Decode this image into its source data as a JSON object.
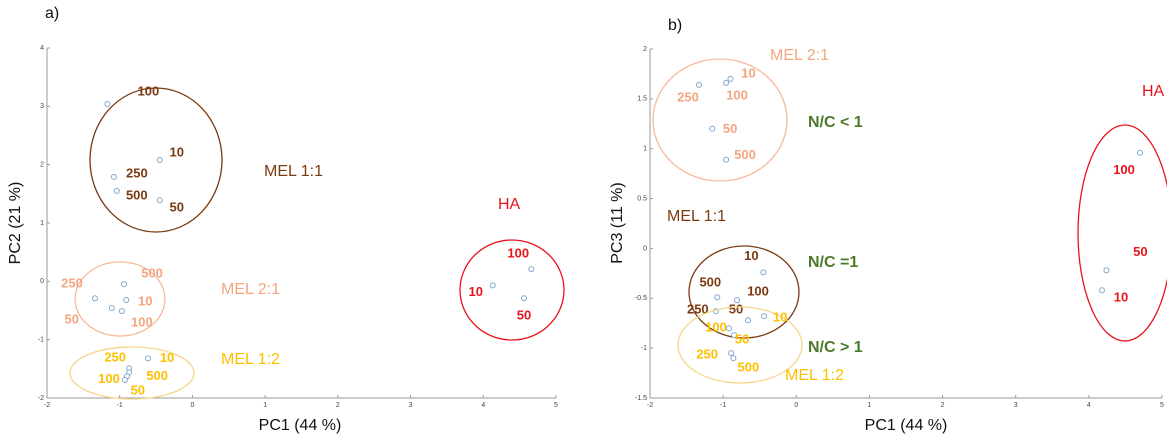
{
  "chart_data": [
    {
      "type": "scatter",
      "panel_label": "a)",
      "xlabel": "PC1 (44 %)",
      "ylabel": "PC2 (21 %)",
      "xlim": [
        -2,
        5
      ],
      "xticks": [
        -2,
        -1,
        0,
        1,
        2,
        3,
        4,
        5
      ],
      "ylim": [
        -2,
        4
      ],
      "yticks": [
        -2,
        -1,
        0,
        1,
        2,
        3,
        4
      ],
      "series": [
        {
          "name": "MEL 1:1",
          "color": "#7b3a10",
          "x": [
            -1.17,
            -0.45,
            -1.08,
            -1.04,
            -0.45
          ],
          "y": [
            3.04,
            2.08,
            1.79,
            1.55,
            1.39
          ],
          "point_labels": [
            "100",
            "10",
            "250",
            "500",
            "50"
          ]
        },
        {
          "name": "MEL 2:1",
          "color": "#f4a582",
          "x": [
            -0.94,
            -1.34,
            -0.91,
            -1.11,
            -0.97
          ],
          "y": [
            -0.05,
            -0.29,
            -0.32,
            -0.46,
            -0.51
          ],
          "point_labels": [
            "500",
            "250",
            "10",
            "50",
            "100"
          ]
        },
        {
          "name": "MEL 1:2",
          "color": "#ffc000",
          "x": [
            -0.61,
            -0.87,
            -0.87,
            -0.9,
            -0.93
          ],
          "y": [
            -1.32,
            -1.49,
            -1.56,
            -1.63,
            -1.69
          ],
          "point_labels": [
            "10",
            "250",
            "500",
            "100",
            "50"
          ]
        },
        {
          "name": "HA",
          "color": "#e8141b",
          "x": [
            4.66,
            4.13,
            4.56
          ],
          "y": [
            0.21,
            -0.07,
            -0.29
          ],
          "point_labels": [
            "100",
            "10",
            "50"
          ]
        }
      ]
    },
    {
      "type": "scatter",
      "panel_label": "b)",
      "xlabel": "PC1 (44 %)",
      "ylabel": "PC3 (11 %)",
      "xlim": [
        -2,
        5
      ],
      "xticks": [
        -2,
        -1,
        0,
        1,
        2,
        3,
        4,
        5
      ],
      "ylim": [
        -1.5,
        2
      ],
      "yticks": [
        -1.5,
        -1,
        -0.5,
        0,
        0.5,
        1,
        1.5,
        2
      ],
      "series": [
        {
          "name": "MEL 2:1",
          "color": "#f4a582",
          "x": [
            -1.33,
            -0.96,
            -0.9,
            -1.15,
            -0.96
          ],
          "y": [
            1.64,
            1.66,
            1.7,
            1.2,
            0.89
          ],
          "point_labels": [
            "250",
            "100",
            "10",
            "50",
            "500"
          ]
        },
        {
          "name": "MEL 1:1",
          "color": "#7b3a10",
          "x": [
            -0.45,
            -1.08,
            -0.81,
            -1.1,
            -0.66
          ],
          "y": [
            -0.24,
            -0.49,
            -0.52,
            -0.63,
            -0.72
          ],
          "point_labels": [
            "10",
            "500",
            "100",
            "250",
            "50"
          ]
        },
        {
          "name": "MEL 1:2",
          "color": "#ffc000",
          "x": [
            -0.44,
            -0.92,
            -0.85,
            -0.89,
            -0.86
          ],
          "y": [
            -0.68,
            -0.8,
            -0.87,
            -1.05,
            -1.1
          ],
          "point_labels": [
            "10",
            "100",
            "50",
            "250",
            "500"
          ]
        },
        {
          "name": "HA",
          "color": "#e8141b",
          "x": [
            4.7,
            4.24,
            4.18
          ],
          "y": [
            0.96,
            -0.22,
            -0.42
          ],
          "point_labels": [
            "100",
            "50",
            "10"
          ]
        }
      ],
      "annotations": [
        "N/C < 1",
        "N/C =1",
        "N/C > 1"
      ]
    }
  ]
}
